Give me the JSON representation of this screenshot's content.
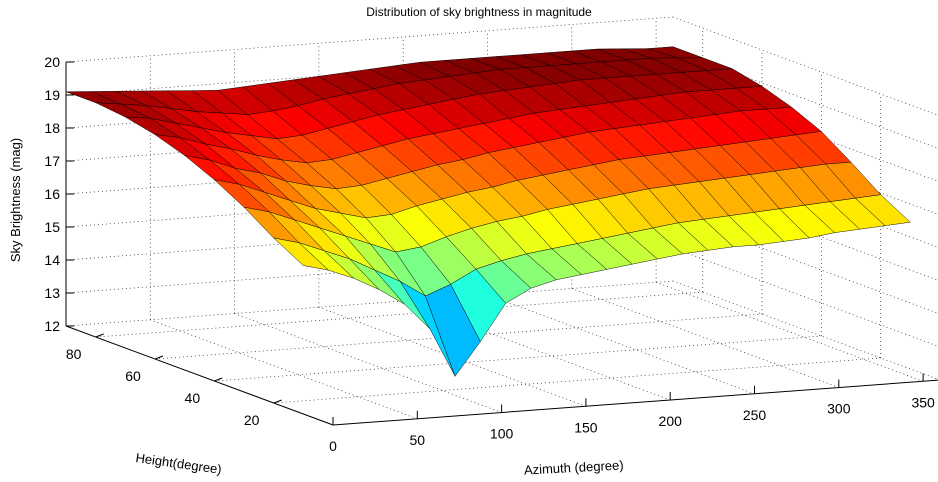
{
  "chart_data": {
    "type": "surface",
    "title": "Distribution of sky brightness in magnitude",
    "xlabel": "Azimuth (degree)",
    "ylabel": "Height(degree)",
    "zlabel": "Sky Brightness (mag)",
    "x_ticks": [
      "0",
      "50",
      "100",
      "150",
      "200",
      "250",
      "300",
      "350"
    ],
    "y_ticks": [
      "20",
      "40",
      "60",
      "80"
    ],
    "z_ticks": [
      "12",
      "13",
      "14",
      "15",
      "16",
      "17",
      "18",
      "19",
      "20"
    ],
    "xlim": [
      0,
      360
    ],
    "ylim": [
      0,
      90
    ],
    "zlim": [
      12,
      20
    ],
    "grid": true,
    "colormap": "jet",
    "azimuth_samples": [
      0,
      15,
      30,
      45,
      60,
      75,
      90,
      105,
      120,
      135,
      150,
      165,
      180,
      195,
      210,
      225,
      240,
      255,
      270,
      285,
      300,
      315,
      330,
      345,
      360
    ],
    "height_samples": [
      10,
      20,
      30,
      40,
      50,
      60,
      70,
      80,
      90
    ],
    "z_values": [
      [
        16.5,
        16.3,
        16.0,
        15.6,
        15.1,
        14.3,
        12.8,
        13.8,
        14.9,
        15.3,
        15.5,
        15.6,
        15.7,
        15.8,
        15.9,
        16.0,
        16.05,
        16.1,
        16.1,
        16.15,
        16.2,
        16.3,
        16.35,
        16.4,
        16.45
      ],
      [
        17.0,
        16.8,
        16.5,
        16.2,
        15.8,
        15.4,
        14.9,
        15.2,
        15.6,
        15.8,
        15.95,
        16.05,
        16.15,
        16.25,
        16.35,
        16.45,
        16.55,
        16.6,
        16.65,
        16.7,
        16.75,
        16.8,
        16.85,
        16.9,
        16.95
      ],
      [
        17.6,
        17.4,
        17.1,
        16.8,
        16.5,
        16.2,
        15.9,
        16.0,
        16.25,
        16.45,
        16.6,
        16.7,
        16.85,
        16.95,
        17.05,
        17.15,
        17.25,
        17.3,
        17.35,
        17.4,
        17.45,
        17.5,
        17.55,
        17.6,
        17.6
      ],
      [
        18.1,
        17.9,
        17.6,
        17.3,
        17.0,
        16.8,
        16.6,
        16.65,
        16.85,
        17.0,
        17.15,
        17.25,
        17.4,
        17.5,
        17.6,
        17.7,
        17.8,
        17.85,
        17.9,
        17.95,
        18.0,
        18.05,
        18.1,
        18.15,
        18.2
      ],
      [
        18.5,
        18.3,
        18.0,
        17.8,
        17.5,
        17.3,
        17.15,
        17.2,
        17.35,
        17.5,
        17.65,
        17.75,
        17.9,
        18.0,
        18.1,
        18.2,
        18.3,
        18.35,
        18.4,
        18.45,
        18.5,
        18.55,
        18.6,
        18.6,
        18.6
      ],
      [
        18.8,
        18.65,
        18.4,
        18.2,
        17.95,
        17.75,
        17.6,
        17.65,
        17.8,
        17.95,
        18.1,
        18.2,
        18.3,
        18.4,
        18.5,
        18.6,
        18.65,
        18.7,
        18.75,
        18.8,
        18.85,
        18.9,
        18.9,
        18.9,
        18.9
      ],
      [
        19.0,
        18.9,
        18.7,
        18.5,
        18.3,
        18.15,
        18.0,
        18.05,
        18.2,
        18.35,
        18.5,
        18.6,
        18.7,
        18.8,
        18.9,
        18.95,
        19.0,
        19.05,
        19.1,
        19.1,
        19.1,
        19.1,
        19.1,
        19.1,
        19.1
      ],
      [
        19.1,
        19.0,
        18.9,
        18.75,
        18.6,
        18.5,
        18.4,
        18.45,
        18.55,
        18.7,
        18.8,
        18.9,
        19.0,
        19.05,
        19.1,
        19.15,
        19.2,
        19.2,
        19.2,
        19.2,
        19.2,
        19.2,
        19.2,
        19.15,
        19.1
      ],
      [
        19.1,
        19.05,
        19.0,
        18.95,
        18.9,
        18.85,
        18.8,
        18.85,
        18.9,
        18.95,
        19.0,
        19.05,
        19.1,
        19.15,
        19.2,
        19.2,
        19.2,
        19.2,
        19.2,
        19.2,
        19.2,
        19.2,
        19.15,
        19.1,
        19.1
      ]
    ]
  }
}
